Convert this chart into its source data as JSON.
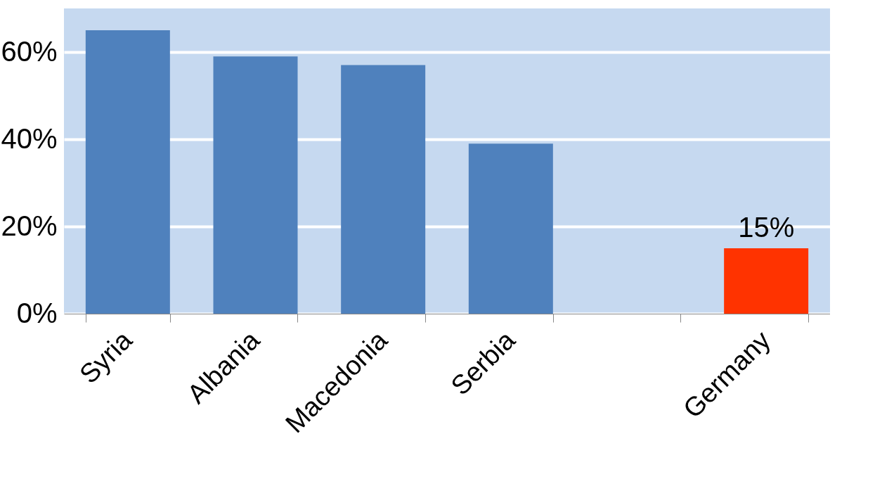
{
  "chart_data": {
    "type": "bar",
    "categories": [
      "Syria",
      "Albania",
      "Macedonia",
      "Serbia",
      null,
      "Germany"
    ],
    "values": [
      65,
      59,
      57,
      39,
      null,
      15
    ],
    "colors": [
      "#4f81bd",
      "#4f81bd",
      "#4f81bd",
      "#4f81bd",
      "#4f81bd",
      "#ff3300"
    ],
    "value_labels": [
      null,
      null,
      null,
      null,
      null,
      "15%"
    ],
    "ylim": [
      0,
      70
    ],
    "yticks": [
      {
        "value": 0,
        "label": "0%"
      },
      {
        "value": 20,
        "label": "20%"
      },
      {
        "value": 40,
        "label": "40%"
      },
      {
        "value": 60,
        "label": "60%"
      }
    ],
    "grid": "y"
  }
}
